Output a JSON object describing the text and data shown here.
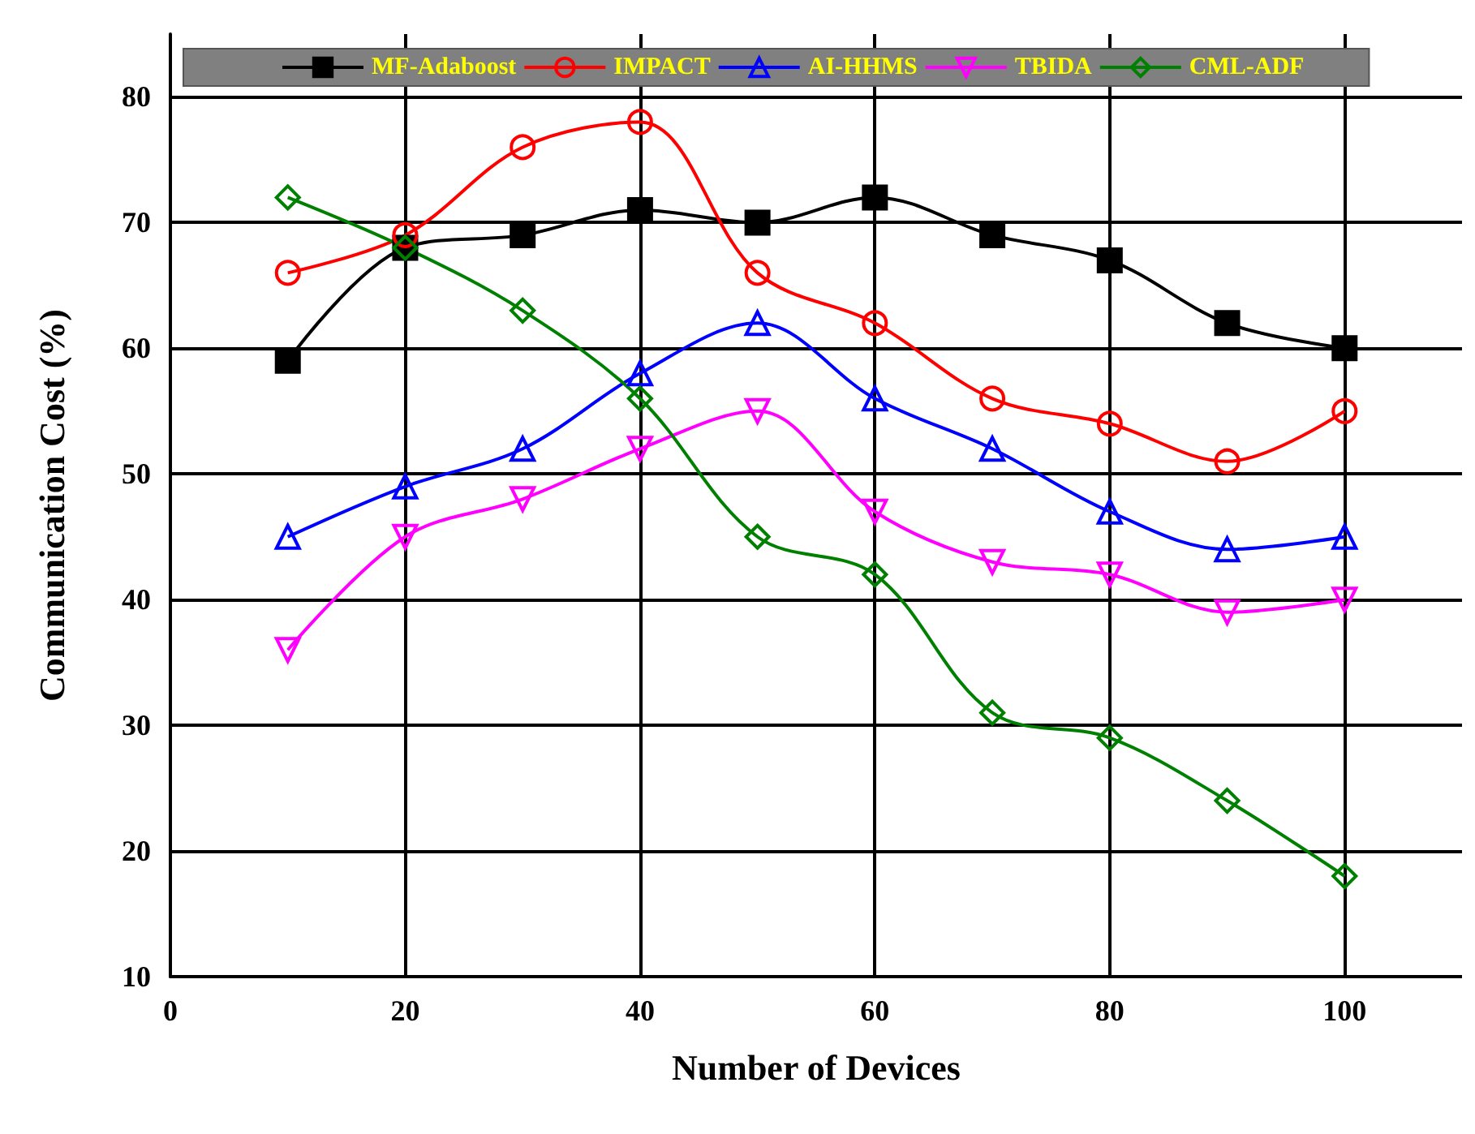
{
  "chart_data": {
    "type": "line",
    "xlabel": "Number of Devices",
    "ylabel": "Communication Cost (%)",
    "x": [
      10,
      20,
      30,
      40,
      50,
      60,
      70,
      80,
      90,
      100
    ],
    "xlim": [
      0,
      110
    ],
    "xticks": [
      0,
      20,
      40,
      60,
      80,
      100
    ],
    "ylim": [
      10,
      85
    ],
    "yticks": [
      10,
      20,
      30,
      40,
      50,
      60,
      70,
      80
    ],
    "grid": true,
    "legend": "top",
    "line_style": "solid",
    "series": [
      {
        "name": "MF-Adaboost",
        "color": "#000000",
        "marker": "square",
        "values": [
          59,
          68,
          69,
          71,
          70,
          72,
          69,
          67,
          62,
          60
        ]
      },
      {
        "name": "IMPACT",
        "color": "#ff0000",
        "marker": "circle",
        "values": [
          66,
          69,
          76,
          78,
          66,
          62,
          56,
          54,
          51,
          55
        ]
      },
      {
        "name": "AI-HHMS",
        "color": "#0000ff",
        "marker": "triangle",
        "values": [
          45,
          49,
          52,
          58,
          62,
          56,
          52,
          47,
          44,
          45
        ]
      },
      {
        "name": "TBIDA",
        "color": "#ff00ff",
        "marker": "triangle-down",
        "values": [
          36,
          45,
          48,
          52,
          55,
          47,
          43,
          42,
          39,
          40
        ]
      },
      {
        "name": "CML-ADF",
        "color": "#008000",
        "marker": "diamond",
        "values": [
          72,
          68,
          63,
          56,
          45,
          42,
          31,
          29,
          24,
          18
        ]
      }
    ]
  }
}
